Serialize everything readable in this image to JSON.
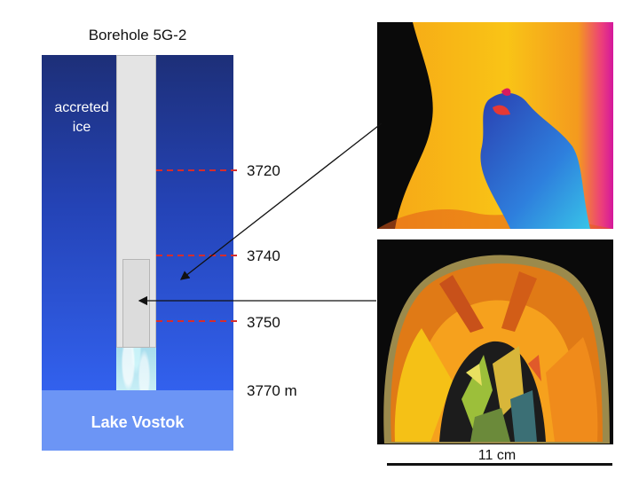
{
  "title": "Borehole 5G-2",
  "labels": {
    "accreted_ice": "accreted ice",
    "lake": "Lake Vostok",
    "scale": "11 cm"
  },
  "depths": [
    "3720",
    "3740",
    "3750",
    "3770 m"
  ],
  "colors": {
    "ice_top": "#1d2f78",
    "ice_bottom": "#3261ee",
    "lake": "#6c95f5",
    "core": "#e4e4e4",
    "marker_line": "#d62c2c",
    "frozen_borehole": "#a7dcec"
  }
}
